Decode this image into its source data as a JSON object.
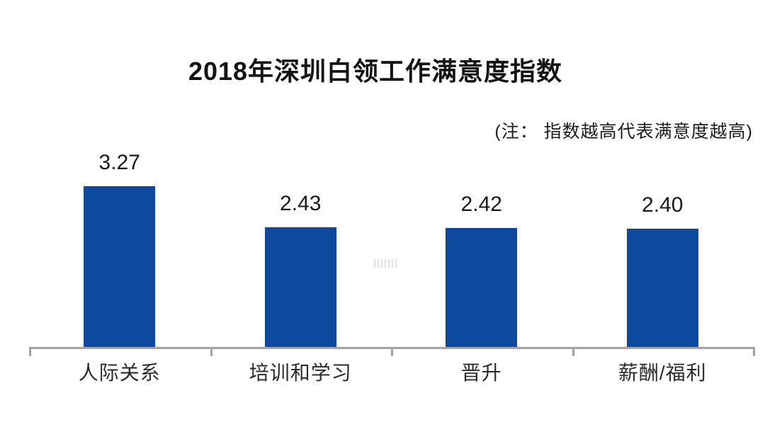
{
  "header": {
    "title": "2018年深圳白领工作满意度指数",
    "note": "(注： 指数越高代表满意度越高)"
  },
  "chart_data": {
    "type": "bar",
    "title": "2018年深圳白领工作满意度指数",
    "annotation": "(注： 指数越高代表满意度越高)",
    "categories": [
      "人际关系",
      "培训和学习",
      "晋升",
      "薪酬/福利"
    ],
    "values": [
      3.27,
      2.43,
      2.42,
      2.4
    ],
    "value_label_format": "2-decimals",
    "xlabel": "",
    "ylabel": "",
    "ylim": [
      0,
      3.6
    ],
    "grid": false,
    "legend": false,
    "bar_color": "#0d4a9e",
    "axis_color": "#a3a3a3",
    "title_color": "#141414",
    "label_color": "#2b2b2b"
  }
}
